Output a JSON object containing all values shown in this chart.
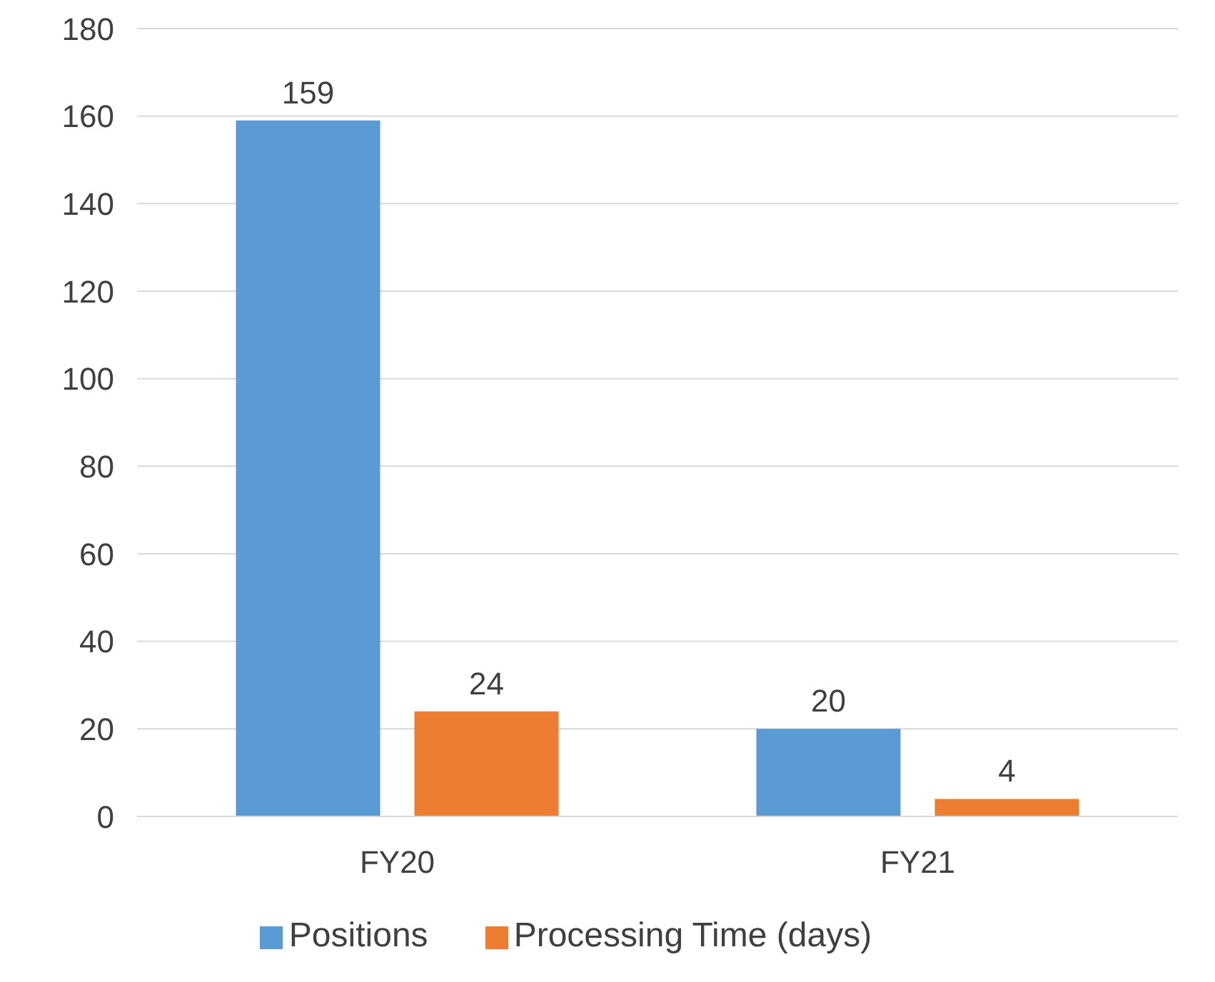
{
  "chart_data": {
    "type": "bar",
    "categories": [
      "FY20",
      "FY21"
    ],
    "series": [
      {
        "name": "Positions",
        "color": "#5b9bd5",
        "values": [
          159,
          20
        ]
      },
      {
        "name": "Processing Time (days)",
        "color": "#ed7d31",
        "values": [
          24,
          4
        ]
      }
    ],
    "ylim": [
      0,
      180
    ],
    "yticks": [
      0,
      20,
      40,
      60,
      80,
      100,
      120,
      140,
      160,
      180
    ],
    "grid": "y",
    "legend": "bottom",
    "data_labels": true
  }
}
